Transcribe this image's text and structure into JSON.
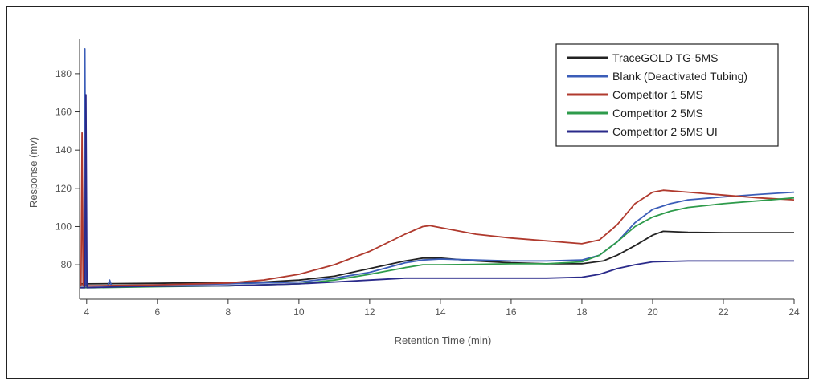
{
  "chart_data": {
    "type": "line",
    "title": "",
    "xlabel": "Retention Time (min)",
    "ylabel": "Response (mv)",
    "xlim": [
      3.8,
      24
    ],
    "ylim": [
      62,
      198
    ],
    "x_ticks": [
      4,
      6,
      8,
      10,
      12,
      14,
      16,
      18,
      20,
      22,
      24
    ],
    "y_ticks": [
      80,
      100,
      120,
      140,
      160,
      180
    ],
    "grid": false,
    "legend": "top-right",
    "series": [
      {
        "name": "TraceGOLD TG-5MS",
        "color": "#222222",
        "points": [
          [
            3.8,
            70
          ],
          [
            4.0,
            70
          ],
          [
            6,
            70.3
          ],
          [
            8,
            70.8
          ],
          [
            9,
            71
          ],
          [
            10,
            72
          ],
          [
            11,
            74
          ],
          [
            12,
            78
          ],
          [
            13,
            82
          ],
          [
            13.5,
            83.5
          ],
          [
            14,
            83.5
          ],
          [
            15,
            82
          ],
          [
            16,
            81
          ],
          [
            17,
            80.5
          ],
          [
            18,
            80.5
          ],
          [
            18.6,
            82
          ],
          [
            19,
            85
          ],
          [
            19.5,
            90
          ],
          [
            20,
            95.5
          ],
          [
            20.3,
            97.5
          ],
          [
            21,
            97
          ],
          [
            22,
            96.8
          ],
          [
            23,
            96.8
          ],
          [
            24,
            96.8
          ]
        ]
      },
      {
        "name": "Blank (Deactivated Tubing)",
        "color": "#3b5db8",
        "points": [
          [
            3.8,
            69
          ],
          [
            3.92,
            69
          ],
          [
            3.95,
            193
          ],
          [
            3.98,
            69
          ],
          [
            4.6,
            69
          ],
          [
            4.65,
            72
          ],
          [
            4.7,
            69
          ],
          [
            6,
            69.5
          ],
          [
            8,
            70
          ],
          [
            10,
            71
          ],
          [
            11,
            73
          ],
          [
            12,
            76
          ],
          [
            13,
            81
          ],
          [
            13.5,
            82.5
          ],
          [
            14,
            83
          ],
          [
            15,
            82.5
          ],
          [
            16,
            82
          ],
          [
            17,
            82
          ],
          [
            18,
            82.5
          ],
          [
            18.5,
            85
          ],
          [
            19,
            92
          ],
          [
            19.5,
            102
          ],
          [
            20,
            109
          ],
          [
            20.5,
            112
          ],
          [
            21,
            114
          ],
          [
            22,
            115.5
          ],
          [
            23,
            116.8
          ],
          [
            24,
            118
          ]
        ]
      },
      {
        "name": "Competitor 1 5MS",
        "color": "#b03a2e",
        "points": [
          [
            3.8,
            69
          ],
          [
            3.84,
            69
          ],
          [
            3.87,
            149
          ],
          [
            3.9,
            69
          ],
          [
            4.2,
            69
          ],
          [
            6,
            69.5
          ],
          [
            8,
            70.5
          ],
          [
            9,
            72
          ],
          [
            10,
            75
          ],
          [
            11,
            80
          ],
          [
            12,
            87
          ],
          [
            13,
            96
          ],
          [
            13.5,
            100
          ],
          [
            13.7,
            100.5
          ],
          [
            14,
            99.5
          ],
          [
            15,
            96
          ],
          [
            16,
            94
          ],
          [
            17,
            92.5
          ],
          [
            18,
            91
          ],
          [
            18.5,
            93
          ],
          [
            19,
            101
          ],
          [
            19.5,
            112
          ],
          [
            20,
            118
          ],
          [
            20.3,
            119
          ],
          [
            21,
            118
          ],
          [
            22,
            116.5
          ],
          [
            23,
            115
          ],
          [
            24,
            114
          ]
        ]
      },
      {
        "name": "Competitor 2 5MS",
        "color": "#2e9b4b",
        "points": [
          [
            3.8,
            68
          ],
          [
            4.2,
            68
          ],
          [
            6,
            68.5
          ],
          [
            8,
            69
          ],
          [
            10,
            70
          ],
          [
            11,
            72
          ],
          [
            12,
            75
          ],
          [
            13,
            78.5
          ],
          [
            13.5,
            80
          ],
          [
            14,
            80
          ],
          [
            15,
            80.2
          ],
          [
            16,
            80.5
          ],
          [
            17,
            80.5
          ],
          [
            18,
            81.5
          ],
          [
            18.5,
            85
          ],
          [
            19,
            92
          ],
          [
            19.5,
            100
          ],
          [
            20,
            105
          ],
          [
            20.5,
            108
          ],
          [
            21,
            110
          ],
          [
            22,
            112
          ],
          [
            23,
            113.5
          ],
          [
            24,
            115
          ]
        ]
      },
      {
        "name": "Competitor 2 5MS UI",
        "color": "#2a2a8a",
        "points": [
          [
            3.8,
            68
          ],
          [
            3.95,
            68
          ],
          [
            3.98,
            169
          ],
          [
            4.01,
            68
          ],
          [
            5,
            68.5
          ],
          [
            6,
            68.8
          ],
          [
            8,
            69
          ],
          [
            10,
            70
          ],
          [
            11,
            71
          ],
          [
            12,
            72
          ],
          [
            13,
            73
          ],
          [
            14,
            73
          ],
          [
            15,
            73
          ],
          [
            16,
            73
          ],
          [
            17,
            73
          ],
          [
            18,
            73.5
          ],
          [
            18.5,
            75
          ],
          [
            19,
            78
          ],
          [
            19.5,
            80
          ],
          [
            20,
            81.5
          ],
          [
            21,
            82
          ],
          [
            22,
            82
          ],
          [
            23,
            82
          ],
          [
            24,
            82
          ]
        ]
      }
    ]
  }
}
